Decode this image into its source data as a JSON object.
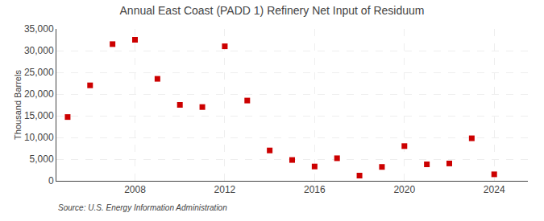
{
  "chart_data": {
    "type": "scatter",
    "title": "Annual East Coast (PADD 1) Refinery Net Input of Residuum",
    "ylabel": "Thousand Barrels",
    "annotations": [
      "Source: U.S. Energy Information Administration"
    ],
    "x": [
      2005,
      2006,
      2007,
      2008,
      2009,
      2010,
      2011,
      2012,
      2013,
      2014,
      2015,
      2016,
      2017,
      2018,
      2019,
      2020,
      2021,
      2022,
      2023,
      2024
    ],
    "values": [
      14700,
      22000,
      31500,
      32500,
      23500,
      17500,
      17000,
      31000,
      18500,
      7000,
      4800,
      3300,
      5200,
      1200,
      3200,
      8000,
      3800,
      4000,
      9800,
      1500
    ],
    "color": "#cc0000",
    "marker": "square",
    "grid": true,
    "xlim": [
      2004.5,
      2025.5
    ],
    "xticks": [
      2008,
      2012,
      2016,
      2020,
      2024
    ],
    "ylim": [
      0,
      35000
    ],
    "yticks": [
      0,
      {
        "value": 5000,
        "label": "5,000"
      },
      {
        "value": 10000,
        "label": "10,000"
      },
      {
        "value": 15000,
        "label": "15,000"
      },
      {
        "value": 20000,
        "label": "20,000"
      },
      {
        "value": 25000,
        "label": "25,000"
      },
      {
        "value": 30000,
        "label": "30,000"
      },
      {
        "value": 35000,
        "label": "35,000"
      }
    ]
  }
}
